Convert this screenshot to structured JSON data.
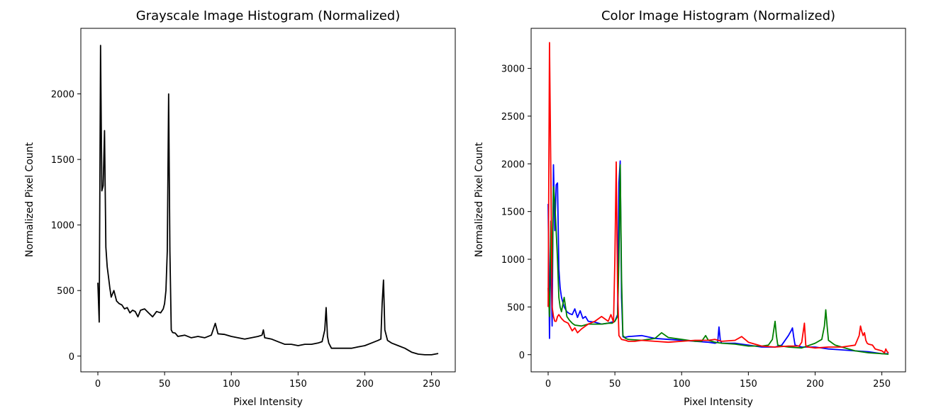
{
  "charts": [
    {
      "title": "Grayscale Image Histogram (Normalized)",
      "xlabel": "Pixel Intensity",
      "ylabel": "Normalized Pixel Count",
      "xticks": [
        0,
        50,
        100,
        150,
        200,
        250
      ],
      "yticks": [
        0,
        500,
        1000,
        1500,
        2000
      ]
    },
    {
      "title": "Color Image Histogram (Normalized)",
      "xlabel": "Pixel Intensity",
      "ylabel": "Normalized Pixel Count",
      "xticks": [
        0,
        50,
        100,
        150,
        200,
        250
      ],
      "yticks": [
        0,
        500,
        1000,
        1500,
        2000,
        2500,
        3000
      ]
    }
  ],
  "chart_data": [
    {
      "type": "line",
      "title": "Grayscale Image Histogram (Normalized)",
      "xlabel": "Pixel Intensity",
      "ylabel": "Normalized Pixel Count",
      "xlim": [
        -12.75,
        267.75
      ],
      "ylim": [
        -120,
        2500
      ],
      "grid": false,
      "series": [
        {
          "color": "#000000",
          "x": [
            0,
            1,
            2,
            3,
            4,
            5,
            6,
            7,
            8,
            9,
            10,
            12,
            14,
            16,
            18,
            20,
            22,
            24,
            26,
            28,
            30,
            32,
            35,
            38,
            41,
            44,
            47,
            49,
            50,
            51,
            52,
            53,
            54,
            55,
            56,
            58,
            60,
            65,
            70,
            75,
            80,
            85,
            88,
            90,
            95,
            100,
            105,
            110,
            115,
            120,
            123,
            124,
            125,
            130,
            135,
            140,
            145,
            150,
            155,
            160,
            165,
            168,
            170,
            171,
            172,
            173,
            175,
            180,
            185,
            190,
            195,
            200,
            205,
            210,
            212,
            213,
            214,
            215,
            217,
            220,
            225,
            230,
            235,
            240,
            245,
            250,
            255
          ],
          "y": [
            560,
            260,
            2370,
            1260,
            1300,
            1720,
            830,
            680,
            600,
            520,
            450,
            500,
            420,
            400,
            390,
            360,
            370,
            330,
            350,
            340,
            300,
            350,
            360,
            330,
            300,
            340,
            330,
            360,
            400,
            500,
            800,
            2000,
            800,
            200,
            180,
            175,
            150,
            160,
            140,
            150,
            140,
            160,
            250,
            170,
            165,
            150,
            140,
            130,
            140,
            150,
            160,
            200,
            140,
            130,
            110,
            90,
            90,
            80,
            90,
            90,
            100,
            110,
            200,
            370,
            150,
            100,
            60,
            60,
            60,
            60,
            70,
            80,
            100,
            120,
            130,
            400,
            580,
            200,
            120,
            100,
            80,
            60,
            30,
            15,
            10,
            10,
            20
          ]
        }
      ]
    },
    {
      "type": "line",
      "title": "Color Image Histogram (Normalized)",
      "xlabel": "Pixel Intensity",
      "ylabel": "Normalized Pixel Count",
      "xlim": [
        -12.75,
        267.75
      ],
      "ylim": [
        -180,
        3420
      ],
      "grid": false,
      "series": [
        {
          "color": "#0000ff",
          "x": [
            0,
            1,
            2,
            3,
            4,
            5,
            6,
            7,
            8,
            9,
            10,
            12,
            14,
            16,
            18,
            20,
            22,
            24,
            26,
            28,
            30,
            35,
            40,
            45,
            50,
            52,
            53,
            54,
            55,
            56,
            57,
            60,
            70,
            80,
            90,
            100,
            110,
            120,
            125,
            127,
            128,
            129,
            130,
            140,
            150,
            160,
            170,
            175,
            180,
            182,
            183,
            184,
            185,
            190,
            200,
            210,
            220,
            230,
            240,
            250,
            255
          ],
          "y": [
            1580,
            170,
            1200,
            300,
            1990,
            1300,
            1780,
            1800,
            900,
            700,
            600,
            500,
            450,
            430,
            420,
            480,
            390,
            460,
            380,
            400,
            350,
            340,
            320,
            330,
            350,
            420,
            1800,
            2030,
            600,
            190,
            180,
            190,
            200,
            170,
            160,
            150,
            140,
            130,
            120,
            130,
            290,
            150,
            120,
            120,
            100,
            80,
            80,
            100,
            200,
            250,
            280,
            180,
            100,
            80,
            80,
            60,
            50,
            40,
            30,
            10,
            10
          ]
        },
        {
          "color": "#008000",
          "x": [
            0,
            1,
            2,
            3,
            4,
            5,
            6,
            7,
            8,
            9,
            10,
            12,
            14,
            16,
            18,
            20,
            25,
            30,
            35,
            40,
            45,
            48,
            50,
            52,
            53,
            54,
            55,
            56,
            58,
            60,
            70,
            80,
            85,
            90,
            100,
            110,
            115,
            118,
            120,
            125,
            130,
            140,
            150,
            160,
            165,
            168,
            170,
            171,
            172,
            175,
            180,
            190,
            200,
            205,
            207,
            208,
            209,
            210,
            215,
            220,
            230,
            240,
            250,
            255
          ],
          "y": [
            700,
            400,
            1400,
            800,
            1760,
            1600,
            1300,
            1000,
            600,
            500,
            450,
            600,
            400,
            360,
            330,
            310,
            300,
            320,
            320,
            320,
            330,
            330,
            350,
            400,
            1000,
            1990,
            800,
            200,
            170,
            160,
            150,
            170,
            230,
            180,
            160,
            140,
            140,
            200,
            150,
            130,
            120,
            110,
            90,
            90,
            100,
            160,
            350,
            200,
            100,
            90,
            80,
            70,
            120,
            160,
            300,
            470,
            300,
            150,
            100,
            80,
            40,
            20,
            10,
            5
          ]
        },
        {
          "color": "#ff0000",
          "x": [
            0,
            1,
            2,
            3,
            4,
            5,
            6,
            7,
            8,
            10,
            12,
            15,
            18,
            20,
            22,
            25,
            28,
            30,
            35,
            40,
            45,
            47,
            49,
            50,
            51,
            52,
            53,
            55,
            58,
            60,
            65,
            70,
            80,
            90,
            100,
            110,
            120,
            125,
            130,
            140,
            145,
            150,
            160,
            170,
            180,
            188,
            190,
            192,
            193,
            194,
            195,
            200,
            210,
            220,
            230,
            233,
            234,
            235,
            236,
            237,
            238,
            239,
            240,
            243,
            245,
            250,
            252,
            253,
            254,
            255
          ],
          "y": [
            500,
            3270,
            1900,
            500,
            400,
            350,
            350,
            400,
            420,
            380,
            350,
            330,
            250,
            280,
            230,
            270,
            300,
            320,
            350,
            400,
            350,
            420,
            340,
            1000,
            2020,
            700,
            200,
            160,
            150,
            140,
            140,
            150,
            140,
            130,
            140,
            150,
            150,
            160,
            140,
            150,
            190,
            130,
            90,
            80,
            90,
            90,
            130,
            330,
            100,
            80,
            80,
            70,
            80,
            80,
            100,
            200,
            300,
            240,
            200,
            230,
            150,
            120,
            110,
            100,
            60,
            40,
            20,
            60,
            30,
            20
          ]
        }
      ]
    }
  ]
}
